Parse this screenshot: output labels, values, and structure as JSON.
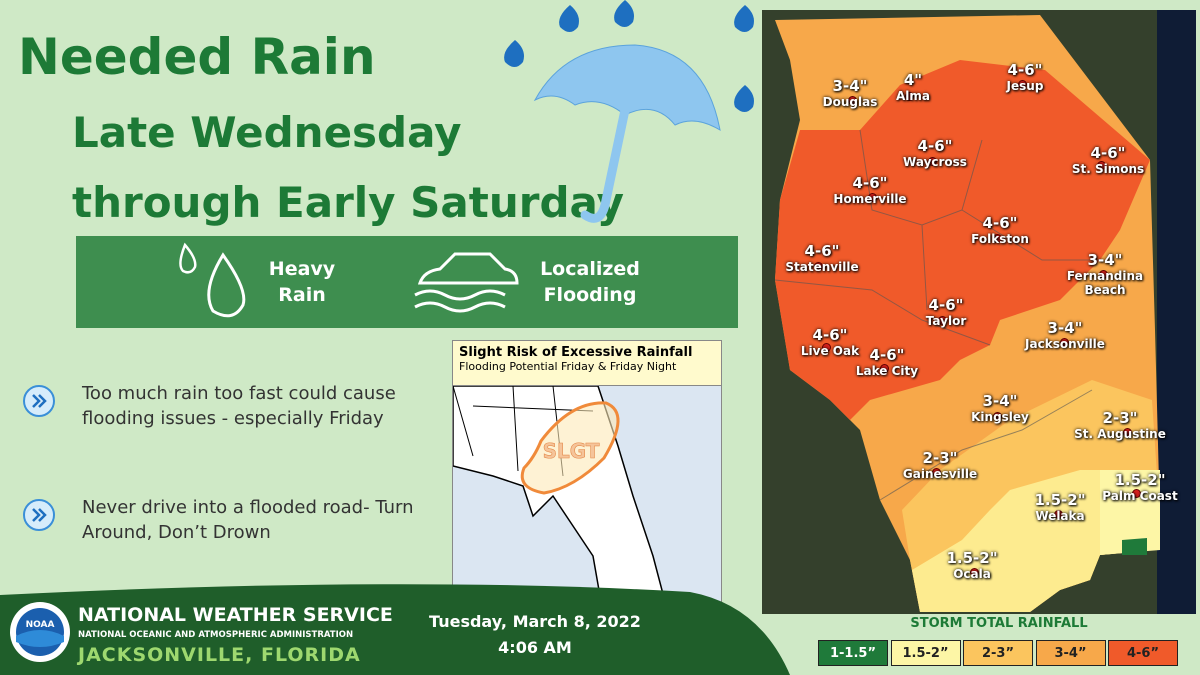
{
  "header": {
    "title": "Needed Rain",
    "subtitle_lines": [
      "Late Wednesday",
      "through Early Saturday"
    ]
  },
  "hazards": [
    {
      "lines": [
        "Heavy",
        "Rain"
      ]
    },
    {
      "lines": [
        "Localized",
        "Flooding"
      ]
    }
  ],
  "bullets": [
    "Too much rain too fast could cause flooding issues - especially Friday",
    "Never drive into a flooded road- Turn Around, Don’t Drown"
  ],
  "inset": {
    "title": "Slight Risk of Excessive Rainfall",
    "subtitle": "Flooding Potential Friday & Friday Night",
    "risk_label": "SLGT"
  },
  "footer": {
    "logo": "NOAA",
    "agency": "NATIONAL WEATHER SERVICE",
    "organization": "NATIONAL OCEANIC AND ATMOSPHERIC ADMINISTRATION",
    "office": "JACKSONVILLE, FLORIDA",
    "date": "Tuesday, March 8, 2022",
    "time": "4:06 AM"
  },
  "map": {
    "locations": [
      {
        "amount": "3-4\"",
        "name": "Douglas"
      },
      {
        "amount": "4\"",
        "name": "Alma"
      },
      {
        "amount": "4-6\"",
        "name": "Jesup"
      },
      {
        "amount": "4-6\"",
        "name": "Waycross"
      },
      {
        "amount": "4-6\"",
        "name": "St. Simons"
      },
      {
        "amount": "4-6\"",
        "name": "Homerville"
      },
      {
        "amount": "4-6\"",
        "name": "Folkston"
      },
      {
        "amount": "4-6\"",
        "name": "Statenville"
      },
      {
        "amount": "3-4\"",
        "name": "Fernandina Beach"
      },
      {
        "amount": "4-6\"",
        "name": "Taylor"
      },
      {
        "amount": "3-4\"",
        "name": "Jacksonville"
      },
      {
        "amount": "4-6\"",
        "name": "Live Oak"
      },
      {
        "amount": "4-6\"",
        "name": "Lake City"
      },
      {
        "amount": "3-4\"",
        "name": "Kingsley"
      },
      {
        "amount": "2-3\"",
        "name": "St. Augustine"
      },
      {
        "amount": "2-3\"",
        "name": "Gainesville"
      },
      {
        "amount": "1.5-2\"",
        "name": "Palm Coast"
      },
      {
        "amount": "1.5-2\"",
        "name": "Welaka"
      },
      {
        "amount": "1.5-2\"",
        "name": "Ocala"
      }
    ],
    "legend_title": "STORM TOTAL RAINFALL",
    "legend": [
      {
        "label": "1-1.5”",
        "color": "#1f7a3a"
      },
      {
        "label": "1.5-2”",
        "color": "#fdf6a6"
      },
      {
        "label": "2-3”",
        "color": "#fbc55e"
      },
      {
        "label": "3-4”",
        "color": "#f7a84a"
      },
      {
        "label": "4-6”",
        "color": "#f05a2a"
      }
    ]
  }
}
